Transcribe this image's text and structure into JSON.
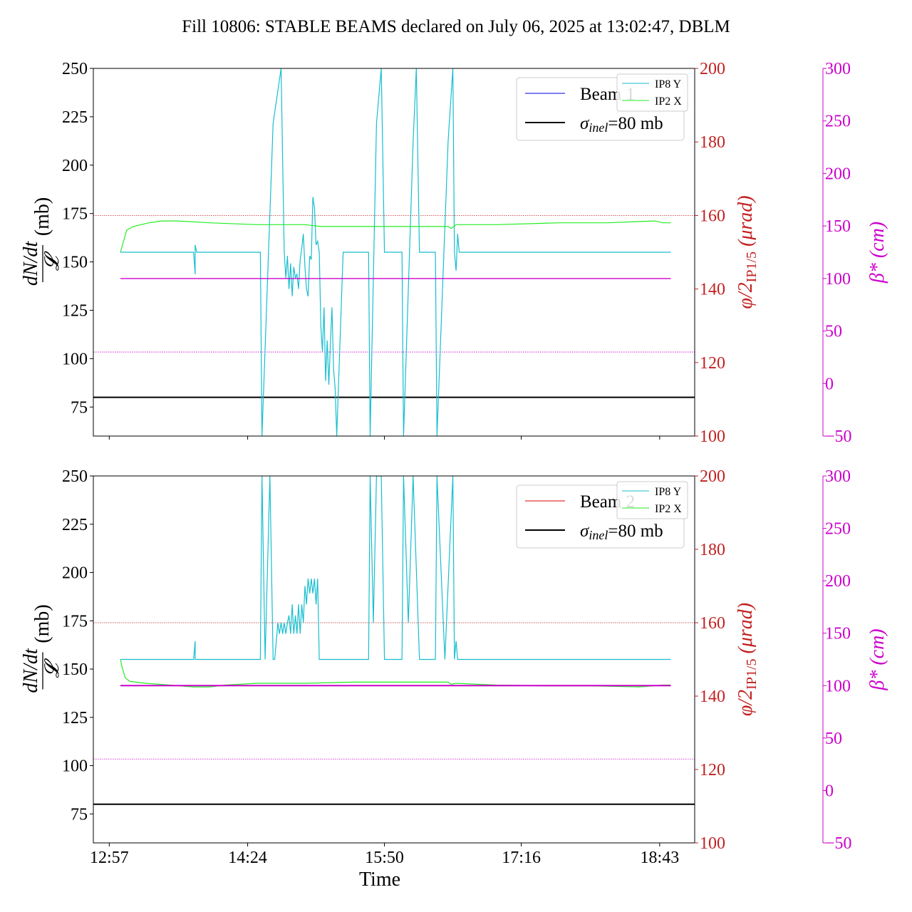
{
  "title": "Fill 10806: STABLE BEAMS declared on July 06, 2025 at 13:02:47, DBLM",
  "colors": {
    "ip8": "#17becf",
    "ip2": "#22ee22",
    "beta": "#cc00cc",
    "angle": "#c22020",
    "beam1": "#0000dd",
    "beam2": "#dd0000",
    "sigma": "#000000"
  },
  "chart_data": [
    {
      "type": "line",
      "panel": "top",
      "xlabel": "",
      "ylabel": "dN/dt / 𝓛 (mb)",
      "ylabel_right": "φ/2 IP1/5 (μrad)",
      "ylabel_far_right": "β* (cm)",
      "xlim": [
        "12:47",
        "19:05"
      ],
      "ylim": [
        60,
        250
      ],
      "ylim_right": [
        100,
        200
      ],
      "ylim_far_right": [
        -50,
        300
      ],
      "y_ticks": [
        75,
        100,
        125,
        150,
        175,
        200,
        225,
        250
      ],
      "y_right_ticks": [
        100,
        120,
        140,
        160,
        180,
        200
      ],
      "y_far_right_ticks": [
        -50,
        0,
        50,
        100,
        150,
        200,
        250,
        300
      ],
      "legend_main": {
        "placement": "top-right",
        "entries": [
          {
            "label": "Beam 1",
            "color": "#0000dd"
          },
          {
            "label_prefix": "σ",
            "label_sub": "inel",
            "label_suffix": "=80 mb",
            "color": "#000000"
          }
        ]
      },
      "legend_small": {
        "placement": "top-right",
        "entries": [
          {
            "label": "IP8 Y",
            "color": "#17becf"
          },
          {
            "label": "IP2 X",
            "color": "#22ee22"
          }
        ]
      },
      "sigma_inel_mb": 80,
      "series": [
        {
          "name": "IP8 Y",
          "axis": "right",
          "points": [
            [
              "13:04",
              150
            ],
            [
              "13:05",
              150
            ],
            [
              "13:50",
              150
            ],
            [
              "13:51",
              144
            ],
            [
              "13:51",
              152
            ],
            [
              "13:52",
              150
            ],
            [
              "14:32",
              150
            ],
            [
              "14:33",
              100
            ],
            [
              "14:40",
              185
            ],
            [
              "14:45",
              200
            ],
            [
              "14:47",
              150
            ],
            [
              "14:48",
              143
            ],
            [
              "14:49",
              149
            ],
            [
              "14:50",
              140
            ],
            [
              "14:51",
              147
            ],
            [
              "14:52",
              138
            ],
            [
              "14:53",
              146
            ],
            [
              "14:54",
              143
            ],
            [
              "14:55",
              144
            ],
            [
              "14:56",
              140
            ],
            [
              "14:57",
              148
            ],
            [
              "14:58",
              151
            ],
            [
              "14:59",
              155
            ],
            [
              "15:00",
              146
            ],
            [
              "15:01",
              140
            ],
            [
              "15:02",
              138
            ],
            [
              "15:03",
              149
            ],
            [
              "15:04",
              148
            ],
            [
              "15:05",
              165
            ],
            [
              "15:06",
              162
            ],
            [
              "15:07",
              152
            ],
            [
              "15:08",
              153
            ],
            [
              "15:09",
              150
            ],
            [
              "15:10",
              130
            ],
            [
              "15:11",
              123
            ],
            [
              "15:12",
              135
            ],
            [
              "15:13",
              115
            ],
            [
              "15:14",
              126
            ],
            [
              "15:15",
              114
            ],
            [
              "15:16",
              125
            ],
            [
              "15:17",
              135
            ],
            [
              "15:18",
              118
            ],
            [
              "15:19",
              113
            ],
            [
              "15:20",
              100
            ],
            [
              "15:24",
              150
            ],
            [
              "15:40",
              150
            ],
            [
              "15:41",
              100
            ],
            [
              "15:45",
              185
            ],
            [
              "15:48",
              200
            ],
            [
              "15:50",
              150
            ],
            [
              "16:01",
              150
            ],
            [
              "16:02",
              100
            ],
            [
              "16:08",
              180
            ],
            [
              "16:10",
              200
            ],
            [
              "16:12",
              150
            ],
            [
              "16:22",
              150
            ],
            [
              "16:23",
              100
            ],
            [
              "16:30",
              180
            ],
            [
              "16:33",
              200
            ],
            [
              "16:34",
              150
            ],
            [
              "16:35",
              145
            ],
            [
              "16:36",
              155
            ],
            [
              "16:37",
              150
            ],
            [
              "18:50",
              150
            ]
          ]
        },
        {
          "name": "IP2 X",
          "axis": "right",
          "points": [
            [
              "13:04",
              150
            ],
            [
              "13:06",
              153
            ],
            [
              "13:08",
              156
            ],
            [
              "13:12",
              157
            ],
            [
              "13:22",
              158
            ],
            [
              "13:30",
              158.5
            ],
            [
              "13:40",
              158.5
            ],
            [
              "14:00",
              158
            ],
            [
              "14:30",
              157.5
            ],
            [
              "15:00",
              157.5
            ],
            [
              "15:10",
              157
            ],
            [
              "15:30",
              157
            ],
            [
              "16:00",
              157
            ],
            [
              "16:30",
              157
            ],
            [
              "16:32",
              156.5
            ],
            [
              "16:35",
              157.5
            ],
            [
              "17:00",
              157.5
            ],
            [
              "17:40",
              158
            ],
            [
              "18:10",
              158
            ],
            [
              "18:40",
              158.5
            ],
            [
              "18:45",
              158
            ],
            [
              "18:50",
              158
            ]
          ]
        },
        {
          "name": "",
          "axis": "far-right",
          "points": [
            [
              "13:04",
              100
            ],
            [
              "18:50",
              100
            ]
          ]
        }
      ]
    },
    {
      "type": "line",
      "panel": "bottom",
      "xlabel": "Time",
      "ylabel": "dN/dt / 𝓛 (mb)",
      "ylabel_right": "φ/2 IP1/5 (μrad)",
      "ylabel_far_right": "β* (cm)",
      "xlim": [
        "12:47",
        "19:05"
      ],
      "ylim": [
        60,
        250
      ],
      "ylim_right": [
        100,
        200
      ],
      "ylim_far_right": [
        -50,
        300
      ],
      "x_ticks": [
        "12:57",
        "14:24",
        "15:50",
        "17:16",
        "18:43"
      ],
      "y_ticks": [
        75,
        100,
        125,
        150,
        175,
        200,
        225,
        250
      ],
      "y_right_ticks": [
        100,
        120,
        140,
        160,
        180,
        200
      ],
      "y_far_right_ticks": [
        -50,
        0,
        50,
        100,
        150,
        200,
        250,
        300
      ],
      "legend_main": {
        "placement": "top-right",
        "entries": [
          {
            "label": "Beam 2",
            "color": "#dd0000"
          },
          {
            "label_prefix": "σ",
            "label_sub": "inel",
            "label_suffix": "=80 mb",
            "color": "#000000"
          }
        ]
      },
      "legend_small": {
        "placement": "top-right",
        "entries": [
          {
            "label": "IP8 Y",
            "color": "#17becf"
          },
          {
            "label": "IP2 X",
            "color": "#22ee22"
          }
        ]
      },
      "sigma_inel_mb": 80,
      "series": [
        {
          "name": "IP8 Y",
          "axis": "right",
          "points": [
            [
              "13:04",
              150
            ],
            [
              "13:50",
              150
            ],
            [
              "13:51",
              155
            ],
            [
              "13:51",
              150
            ],
            [
              "14:32",
              150
            ],
            [
              "14:33",
              200
            ],
            [
              "14:35",
              150
            ],
            [
              "14:38",
              200
            ],
            [
              "14:40",
              150
            ],
            [
              "14:41",
              150
            ],
            [
              "14:42",
              155
            ],
            [
              "14:43",
              160
            ],
            [
              "14:44",
              157
            ],
            [
              "14:45",
              160
            ],
            [
              "14:46",
              157
            ],
            [
              "14:47",
              160
            ],
            [
              "14:48",
              157
            ],
            [
              "14:49",
              160
            ],
            [
              "14:50",
              162
            ],
            [
              "14:51",
              157
            ],
            [
              "14:52",
              165
            ],
            [
              "14:53",
              157
            ],
            [
              "14:54",
              162
            ],
            [
              "14:55",
              157
            ],
            [
              "14:56",
              165
            ],
            [
              "14:57",
              157
            ],
            [
              "14:58",
              165
            ],
            [
              "14:59",
              160
            ],
            [
              "15:00",
              170
            ],
            [
              "15:01",
              165
            ],
            [
              "15:02",
              172
            ],
            [
              "15:03",
              168
            ],
            [
              "15:04",
              172
            ],
            [
              "15:05",
              168
            ],
            [
              "15:06",
              172
            ],
            [
              "15:07",
              165
            ],
            [
              "15:08",
              172
            ],
            [
              "15:09",
              150
            ],
            [
              "15:24",
              150
            ],
            [
              "15:40",
              150
            ],
            [
              "15:41",
              200
            ],
            [
              "15:43",
              160
            ],
            [
              "15:45",
              200
            ],
            [
              "15:48",
              200
            ],
            [
              "15:50",
              150
            ],
            [
              "16:01",
              150
            ],
            [
              "16:02",
              200
            ],
            [
              "16:05",
              160
            ],
            [
              "16:08",
              200
            ],
            [
              "16:12",
              150
            ],
            [
              "16:22",
              150
            ],
            [
              "16:23",
              200
            ],
            [
              "16:28",
              150
            ],
            [
              "16:33",
              200
            ],
            [
              "16:34",
              150
            ],
            [
              "16:35",
              155
            ],
            [
              "16:36",
              150
            ],
            [
              "18:50",
              150
            ]
          ]
        },
        {
          "name": "IP2 X",
          "axis": "right",
          "points": [
            [
              "13:04",
              150
            ],
            [
              "13:05",
              148
            ],
            [
              "13:07",
              145
            ],
            [
              "13:10",
              144
            ],
            [
              "13:20",
              143.5
            ],
            [
              "13:35",
              143
            ],
            [
              "13:50",
              142.5
            ],
            [
              "14:00",
              142.5
            ],
            [
              "14:10",
              143
            ],
            [
              "14:30",
              143.5
            ],
            [
              "15:00",
              143.5
            ],
            [
              "15:30",
              143.8
            ],
            [
              "16:00",
              143.8
            ],
            [
              "16:30",
              143.8
            ],
            [
              "16:32",
              143.2
            ],
            [
              "16:35",
              143.5
            ],
            [
              "17:00",
              143
            ],
            [
              "17:30",
              142.8
            ],
            [
              "18:00",
              142.8
            ],
            [
              "18:30",
              142.5
            ],
            [
              "18:45",
              143
            ],
            [
              "18:50",
              143
            ]
          ]
        },
        {
          "name": "",
          "axis": "far-right",
          "points": [
            [
              "13:04",
              100
            ],
            [
              "18:50",
              100
            ]
          ]
        }
      ]
    }
  ]
}
